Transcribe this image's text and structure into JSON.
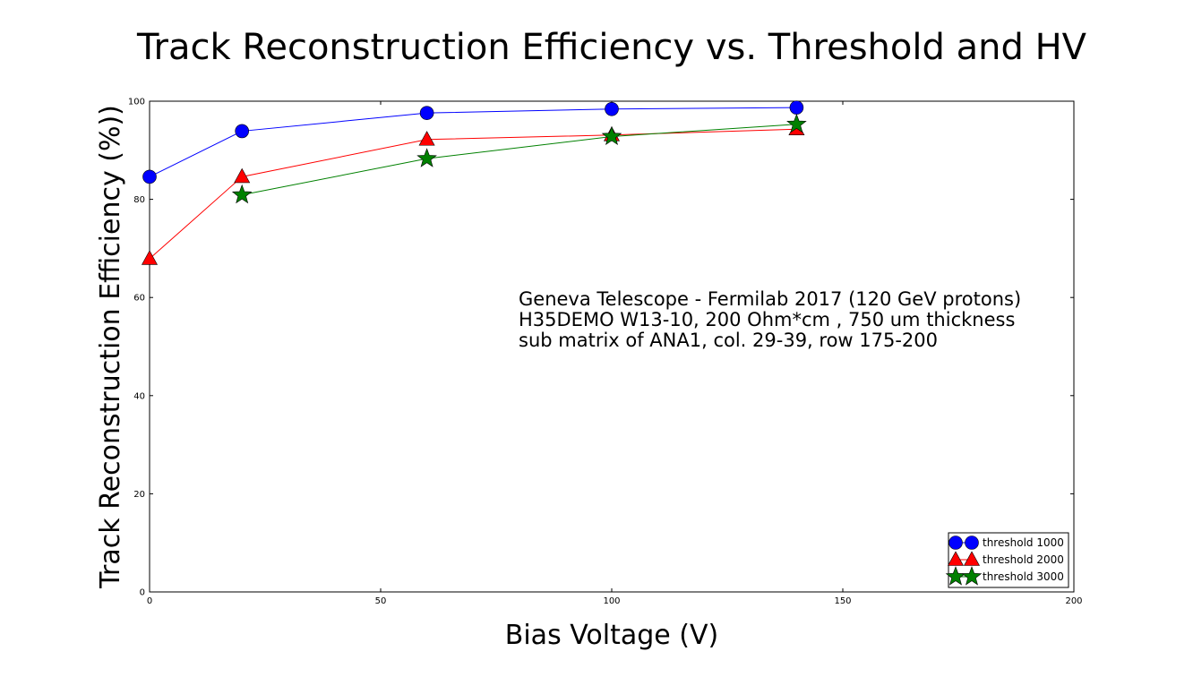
{
  "chart_data": {
    "type": "line",
    "title": "Track Reconstruction Efficiency vs. Threshold and HV",
    "xlabel": "Bias Voltage (V)",
    "ylabel": "Track Reconstruction Efficiency (%))",
    "xlim": [
      0,
      200
    ],
    "ylim": [
      0,
      100
    ],
    "xticks": [
      0,
      50,
      100,
      150,
      200
    ],
    "yticks": [
      0,
      20,
      40,
      60,
      80,
      100
    ],
    "grid": false,
    "legend_position": "bottom-right",
    "annotation": [
      "Geneva Telescope - Fermilab 2017 (120 GeV protons)",
      "H35DEMO W13-10, 200 Ohm*cm , 750 um thickness",
      "sub matrix of ANA1, col. 29-39, row 175-200"
    ],
    "series": [
      {
        "name": "threshold 1000",
        "color": "#0000ff",
        "marker": "circle",
        "x": [
          0,
          20,
          60,
          100,
          140
        ],
        "y": [
          84.6,
          93.9,
          97.6,
          98.4,
          98.7
        ]
      },
      {
        "name": "threshold 2000",
        "color": "#ff0000",
        "marker": "triangle",
        "x": [
          0,
          20,
          60,
          100,
          140
        ],
        "y": [
          67.9,
          84.6,
          92.2,
          93.1,
          94.3
        ]
      },
      {
        "name": "threshold 3000",
        "color": "#008000",
        "marker": "star",
        "x": [
          20,
          60,
          100,
          140
        ],
        "y": [
          80.9,
          88.3,
          92.8,
          95.3
        ]
      }
    ]
  }
}
